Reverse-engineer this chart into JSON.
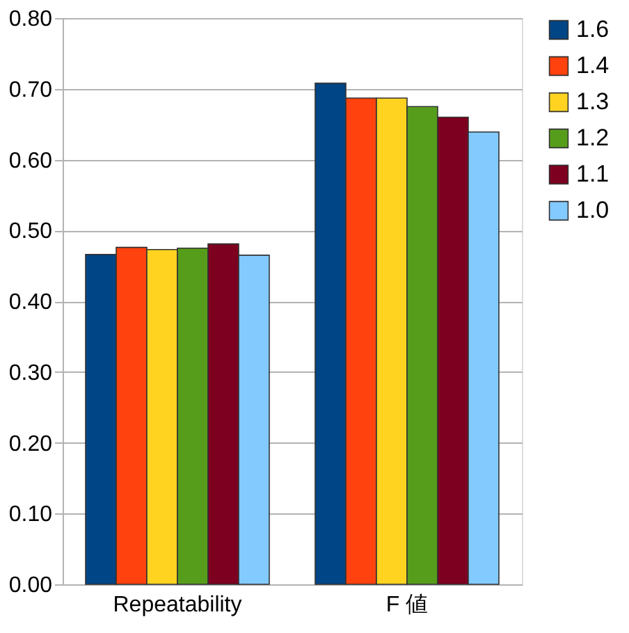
{
  "chart_data": {
    "type": "bar",
    "categories": [
      "Repeatability",
      "F 値"
    ],
    "series": [
      {
        "name": "1.6",
        "color": "#004586",
        "values": [
          0.466,
          0.708
        ]
      },
      {
        "name": "1.4",
        "color": "#ff420e",
        "values": [
          0.476,
          0.687
        ]
      },
      {
        "name": "1.3",
        "color": "#ffd320",
        "values": [
          0.473,
          0.687
        ]
      },
      {
        "name": "1.2",
        "color": "#579d1c",
        "values": [
          0.475,
          0.675
        ]
      },
      {
        "name": "1.1",
        "color": "#7e0021",
        "values": [
          0.481,
          0.66
        ]
      },
      {
        "name": "1.0",
        "color": "#83caff",
        "values": [
          0.465,
          0.639
        ]
      }
    ],
    "ylim": [
      0,
      0.8
    ],
    "yticks": [
      {
        "value": 0,
        "label": "0.00"
      },
      {
        "value": 0.1,
        "label": "0.10"
      },
      {
        "value": 0.2,
        "label": "0.20"
      },
      {
        "value": 0.3,
        "label": "0.30"
      },
      {
        "value": 0.4,
        "label": "0.40"
      },
      {
        "value": 0.5,
        "label": "0.50"
      },
      {
        "value": 0.6,
        "label": "0.60"
      },
      {
        "value": 0.7,
        "label": "0.70"
      },
      {
        "value": 0.8,
        "label": "0.80"
      }
    ],
    "grid": "y",
    "legend": "right"
  }
}
